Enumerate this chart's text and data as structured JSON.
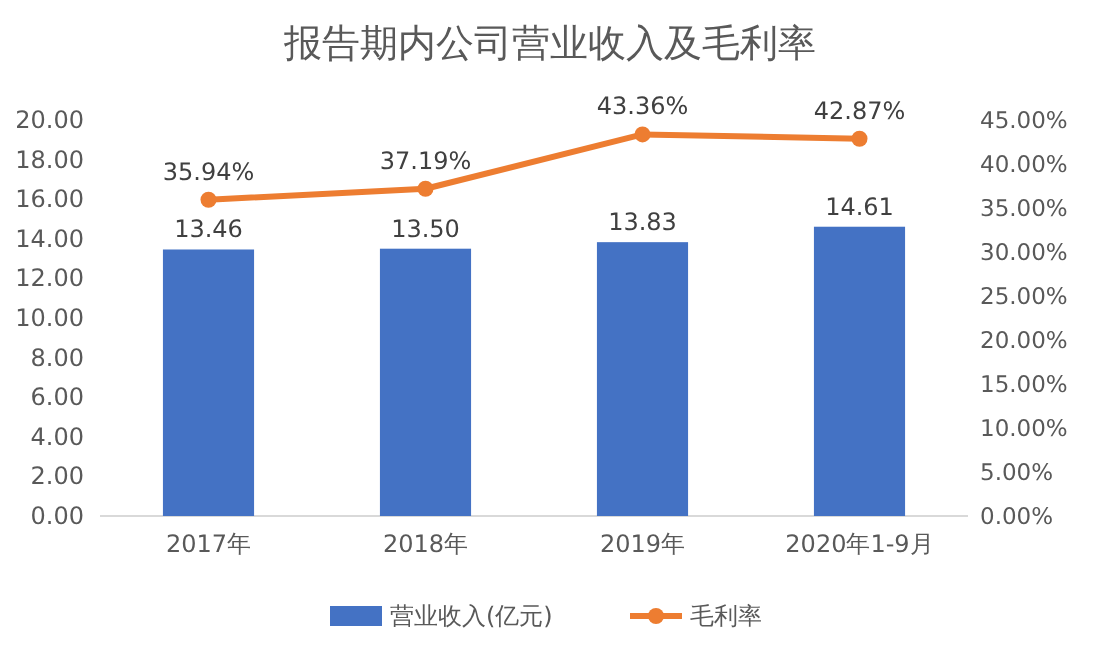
{
  "chart_data": {
    "type": "bar",
    "title": "报告期内公司营业收入及毛利率",
    "categories": [
      "2017年",
      "2018年",
      "2019年",
      "2020年1-9月"
    ],
    "series": [
      {
        "name": "营业收入(亿元)",
        "color": "#4472c4",
        "values": [
          13.46,
          13.5,
          13.83,
          14.61
        ],
        "value_labels": [
          "13.46",
          "13.50",
          "13.83",
          "14.61"
        ]
      },
      {
        "name": "毛利率",
        "type": "line",
        "axis": "y2",
        "color": "#ed7d31",
        "values": [
          35.94,
          37.19,
          43.36,
          42.87
        ],
        "value_labels": [
          "35.94%",
          "37.19%",
          "43.36%",
          "42.87%"
        ]
      }
    ],
    "ylim": [
      0,
      20
    ],
    "yticks": [
      {
        "value": 0,
        "label": "0.00"
      },
      {
        "value": 2,
        "label": "2.00"
      },
      {
        "value": 4,
        "label": "4.00"
      },
      {
        "value": 6,
        "label": "6.00"
      },
      {
        "value": 8,
        "label": "8.00"
      },
      {
        "value": 10,
        "label": "10.00"
      },
      {
        "value": 12,
        "label": "12.00"
      },
      {
        "value": 14,
        "label": "14.00"
      },
      {
        "value": 16,
        "label": "16.00"
      },
      {
        "value": 18,
        "label": "18.00"
      },
      {
        "value": 20,
        "label": "20.00"
      }
    ],
    "y2lim": [
      0,
      45
    ],
    "y2ticks": [
      {
        "value": 0,
        "label": "0.00%"
      },
      {
        "value": 5,
        "label": "5.00%"
      },
      {
        "value": 10,
        "label": "10.00%"
      },
      {
        "value": 15,
        "label": "15.00%"
      },
      {
        "value": 20,
        "label": "20.00%"
      },
      {
        "value": 25,
        "label": "25.00%"
      },
      {
        "value": 30,
        "label": "30.00%"
      },
      {
        "value": 35,
        "label": "35.00%"
      },
      {
        "value": 40,
        "label": "40.00%"
      },
      {
        "value": 45,
        "label": "45.00%"
      }
    ],
    "legend": "bottom",
    "marker": "circle",
    "line_style": "solid"
  }
}
